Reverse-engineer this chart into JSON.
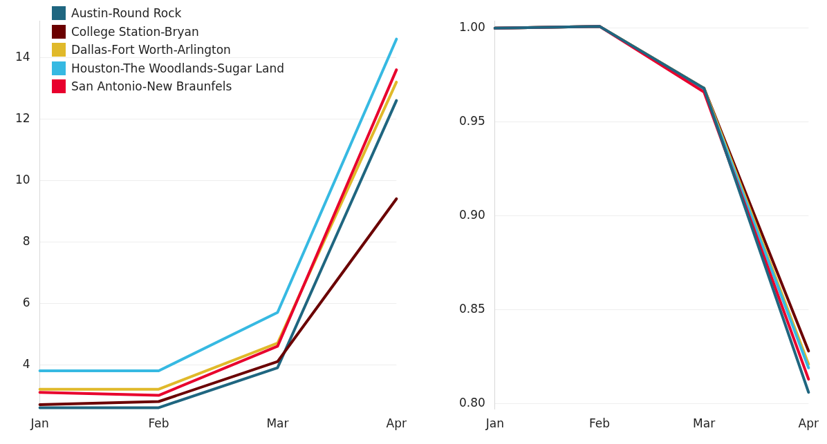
{
  "chart_data": [
    {
      "type": "line",
      "categories": [
        "Jan",
        "Feb",
        "Mar",
        "Apr"
      ],
      "ylim": [
        2.55,
        15.2
      ],
      "yticks": [
        4,
        6,
        8,
        10,
        12,
        14
      ],
      "grid": "y",
      "legend": "top left",
      "marker": "none",
      "series": [
        {
          "name": "Austin-Round Rock",
          "color": "#1f6680",
          "values": [
            2.6,
            2.6,
            3.9,
            12.6
          ]
        },
        {
          "name": "College Station-Bryan",
          "color": "#6b0000",
          "values": [
            2.7,
            2.8,
            4.1,
            9.4
          ]
        },
        {
          "name": "Dallas-Fort Worth-Arlington",
          "color": "#e0b92a",
          "values": [
            3.2,
            3.2,
            4.7,
            13.2
          ]
        },
        {
          "name": "Houston-The Woodlands-Sugar Land",
          "color": "#36b9e2",
          "values": [
            3.8,
            3.8,
            5.7,
            14.6
          ]
        },
        {
          "name": "San Antonio-New Braunfels",
          "color": "#e8002d",
          "values": [
            3.1,
            3.0,
            4.6,
            13.6
          ]
        }
      ]
    },
    {
      "type": "line",
      "categories": [
        "Jan",
        "Feb",
        "Mar",
        "Apr"
      ],
      "ylim": [
        0.797,
        1.004
      ],
      "yticks": [
        {
          "value": 0.8,
          "label": "0.80"
        },
        {
          "value": 0.85,
          "label": "0.85"
        },
        {
          "value": 0.9,
          "label": "0.90"
        },
        {
          "value": 0.95,
          "label": "0.95"
        },
        {
          "value": 1.0,
          "label": "1.00"
        }
      ],
      "grid": "y",
      "marker": "none",
      "series": [
        {
          "color": "#6b0000",
          "values": [
            1.0,
            1.001,
            0.968,
            0.828
          ]
        },
        {
          "color": "#e0b92a",
          "values": [
            1.0,
            1.001,
            0.968,
            0.821
          ]
        },
        {
          "color": "#36b9e2",
          "values": [
            1.0,
            1.001,
            0.967,
            0.819
          ]
        },
        {
          "color": "#e8002d",
          "values": [
            1.0,
            1.001,
            0.966,
            0.813
          ]
        },
        {
          "color": "#1f6680",
          "values": [
            1.0,
            1.001,
            0.968,
            0.806
          ]
        }
      ]
    }
  ]
}
